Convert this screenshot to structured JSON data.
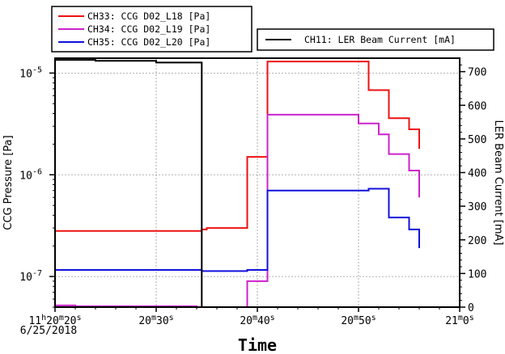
{
  "chart_data": {
    "type": "line",
    "xlabel": "Time",
    "ylabel_left": "CCG Pressure [Pa]",
    "ylabel_right": "LER Beam Current [mA]",
    "date_label": "6/25/2018",
    "x_ticks": [
      {
        "t": 20,
        "parts": [
          {
            "s": "11"
          },
          {
            "s": "h",
            "sup": true
          },
          {
            "s": "20"
          },
          {
            "s": "m",
            "sup": true
          },
          {
            "s": "20"
          },
          {
            "s": "s",
            "sup": true
          }
        ]
      },
      {
        "t": 30,
        "parts": [
          {
            "s": "20"
          },
          {
            "s": "m",
            "sup": true
          },
          {
            "s": "30"
          },
          {
            "s": "s",
            "sup": true
          }
        ]
      },
      {
        "t": 40,
        "parts": [
          {
            "s": "20"
          },
          {
            "s": "m",
            "sup": true
          },
          {
            "s": "40"
          },
          {
            "s": "s",
            "sup": true
          }
        ]
      },
      {
        "t": 50,
        "parts": [
          {
            "s": "20"
          },
          {
            "s": "m",
            "sup": true
          },
          {
            "s": "50"
          },
          {
            "s": "s",
            "sup": true
          }
        ]
      },
      {
        "t": 60,
        "parts": [
          {
            "s": "21"
          },
          {
            "s": "m",
            "sup": true
          },
          {
            "s": "0"
          },
          {
            "s": "s",
            "sup": true
          }
        ]
      }
    ],
    "x_range_seconds_after_11h20m": [
      20,
      60
    ],
    "y_left_range": [
      5e-08,
      1.4e-05
    ],
    "y_left_scale": "log",
    "y_left_ticks": [
      {
        "v": 1e-07,
        "base": "10",
        "exp": "-7"
      },
      {
        "v": 1e-06,
        "base": "10",
        "exp": "-6"
      },
      {
        "v": 1e-05,
        "base": "10",
        "exp": "-5"
      }
    ],
    "y_right_range": [
      0,
      740
    ],
    "y_right_ticks": [
      0,
      100,
      200,
      300,
      400,
      500,
      600,
      700
    ],
    "grid": true,
    "legend_placement": "top",
    "series": [
      {
        "name": "CH33: CCG D02_L18 [Pa]",
        "axis": "left",
        "color": "#ee1111",
        "points": [
          [
            20,
            2.8e-07
          ],
          [
            34.5,
            2.8e-07
          ],
          [
            34.5,
            2.9e-07
          ],
          [
            35,
            2.9e-07
          ],
          [
            35,
            3e-07
          ],
          [
            39,
            3e-07
          ],
          [
            39,
            1.5e-06
          ],
          [
            41,
            1.5e-06
          ],
          [
            41,
            1.3e-05
          ],
          [
            51,
            1.3e-05
          ],
          [
            51,
            6.8e-06
          ],
          [
            53,
            6.8e-06
          ],
          [
            53,
            3.6e-06
          ],
          [
            55,
            3.6e-06
          ],
          [
            55,
            2.8e-06
          ],
          [
            56,
            2.8e-06
          ],
          [
            56,
            1.8e-06
          ]
        ]
      },
      {
        "name": "CH34: CCG D02_L19 [Pa]",
        "axis": "left",
        "color": "#cc22cc",
        "points": [
          [
            20,
            5.2e-08
          ],
          [
            22,
            5.2e-08
          ],
          [
            22,
            5.1e-08
          ],
          [
            34,
            5.1e-08
          ],
          [
            34,
            5e-08
          ],
          [
            39,
            5e-08
          ],
          [
            39,
            9e-08
          ],
          [
            41,
            9e-08
          ],
          [
            41,
            3.9e-06
          ],
          [
            50,
            3.9e-06
          ],
          [
            50,
            3.2e-06
          ],
          [
            52,
            3.2e-06
          ],
          [
            52,
            2.5e-06
          ],
          [
            53,
            2.5e-06
          ],
          [
            53,
            1.6e-06
          ],
          [
            55,
            1.6e-06
          ],
          [
            55,
            1.1e-06
          ],
          [
            56,
            1.1e-06
          ],
          [
            56,
            6e-07
          ]
        ]
      },
      {
        "name": "CH35: CCG D02_L20 [Pa]",
        "axis": "left",
        "color": "#1111dd",
        "points": [
          [
            20,
            1.16e-07
          ],
          [
            34.5,
            1.16e-07
          ],
          [
            34.5,
            1.13e-07
          ],
          [
            39,
            1.13e-07
          ],
          [
            39,
            1.16e-07
          ],
          [
            41,
            1.16e-07
          ],
          [
            41,
            7e-07
          ],
          [
            51,
            7e-07
          ],
          [
            51,
            7.3e-07
          ],
          [
            53,
            7.3e-07
          ],
          [
            53,
            3.8e-07
          ],
          [
            55,
            3.8e-07
          ],
          [
            55,
            2.9e-07
          ],
          [
            56,
            2.9e-07
          ],
          [
            56,
            1.9e-07
          ]
        ]
      },
      {
        "name": "CH11: LER Beam Current [mA]",
        "axis": "right",
        "color": "#000000",
        "points": [
          [
            20,
            735
          ],
          [
            24,
            735
          ],
          [
            24,
            732
          ],
          [
            30,
            732
          ],
          [
            30,
            727
          ],
          [
            34.5,
            727
          ],
          [
            34.5,
            0
          ],
          [
            60,
            0
          ]
        ]
      }
    ]
  }
}
